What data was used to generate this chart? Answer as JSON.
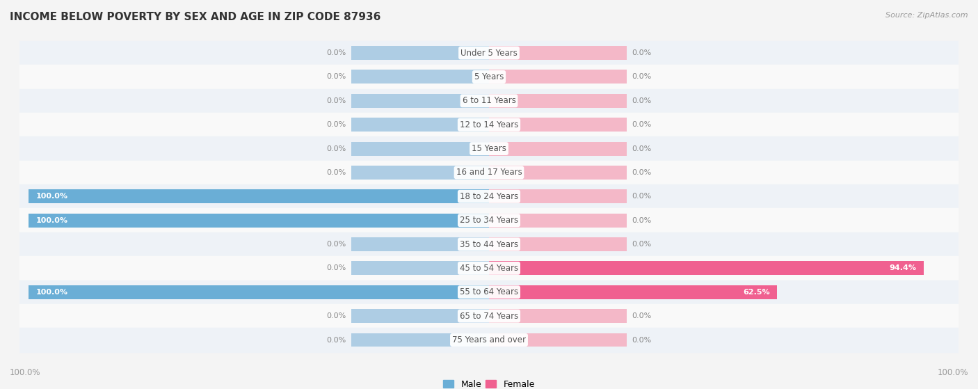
{
  "title": "INCOME BELOW POVERTY BY SEX AND AGE IN ZIP CODE 87936",
  "source": "Source: ZipAtlas.com",
  "categories": [
    "Under 5 Years",
    "5 Years",
    "6 to 11 Years",
    "12 to 14 Years",
    "15 Years",
    "16 and 17 Years",
    "18 to 24 Years",
    "25 to 34 Years",
    "35 to 44 Years",
    "45 to 54 Years",
    "55 to 64 Years",
    "65 to 74 Years",
    "75 Years and over"
  ],
  "male_values": [
    0.0,
    0.0,
    0.0,
    0.0,
    0.0,
    0.0,
    100.0,
    100.0,
    0.0,
    0.0,
    100.0,
    0.0,
    0.0
  ],
  "female_values": [
    0.0,
    0.0,
    0.0,
    0.0,
    0.0,
    0.0,
    0.0,
    0.0,
    0.0,
    94.4,
    62.5,
    0.0,
    0.0
  ],
  "male_active_color": "#6aaed6",
  "male_bg_color": "#aecde4",
  "female_active_color": "#f06090",
  "female_bg_color": "#f4b8c8",
  "row_colors": [
    "#eef2f7",
    "#f9f9f9"
  ],
  "title_color": "#333333",
  "label_color": "#555555",
  "value_color_dark": "#888888",
  "value_color_white": "#ffffff",
  "bg_color": "#f4f4f4",
  "max_val": 100.0,
  "bg_bar_extent": 30.0,
  "title_fontsize": 11,
  "label_fontsize": 8.5,
  "value_fontsize": 8,
  "legend_fontsize": 9
}
